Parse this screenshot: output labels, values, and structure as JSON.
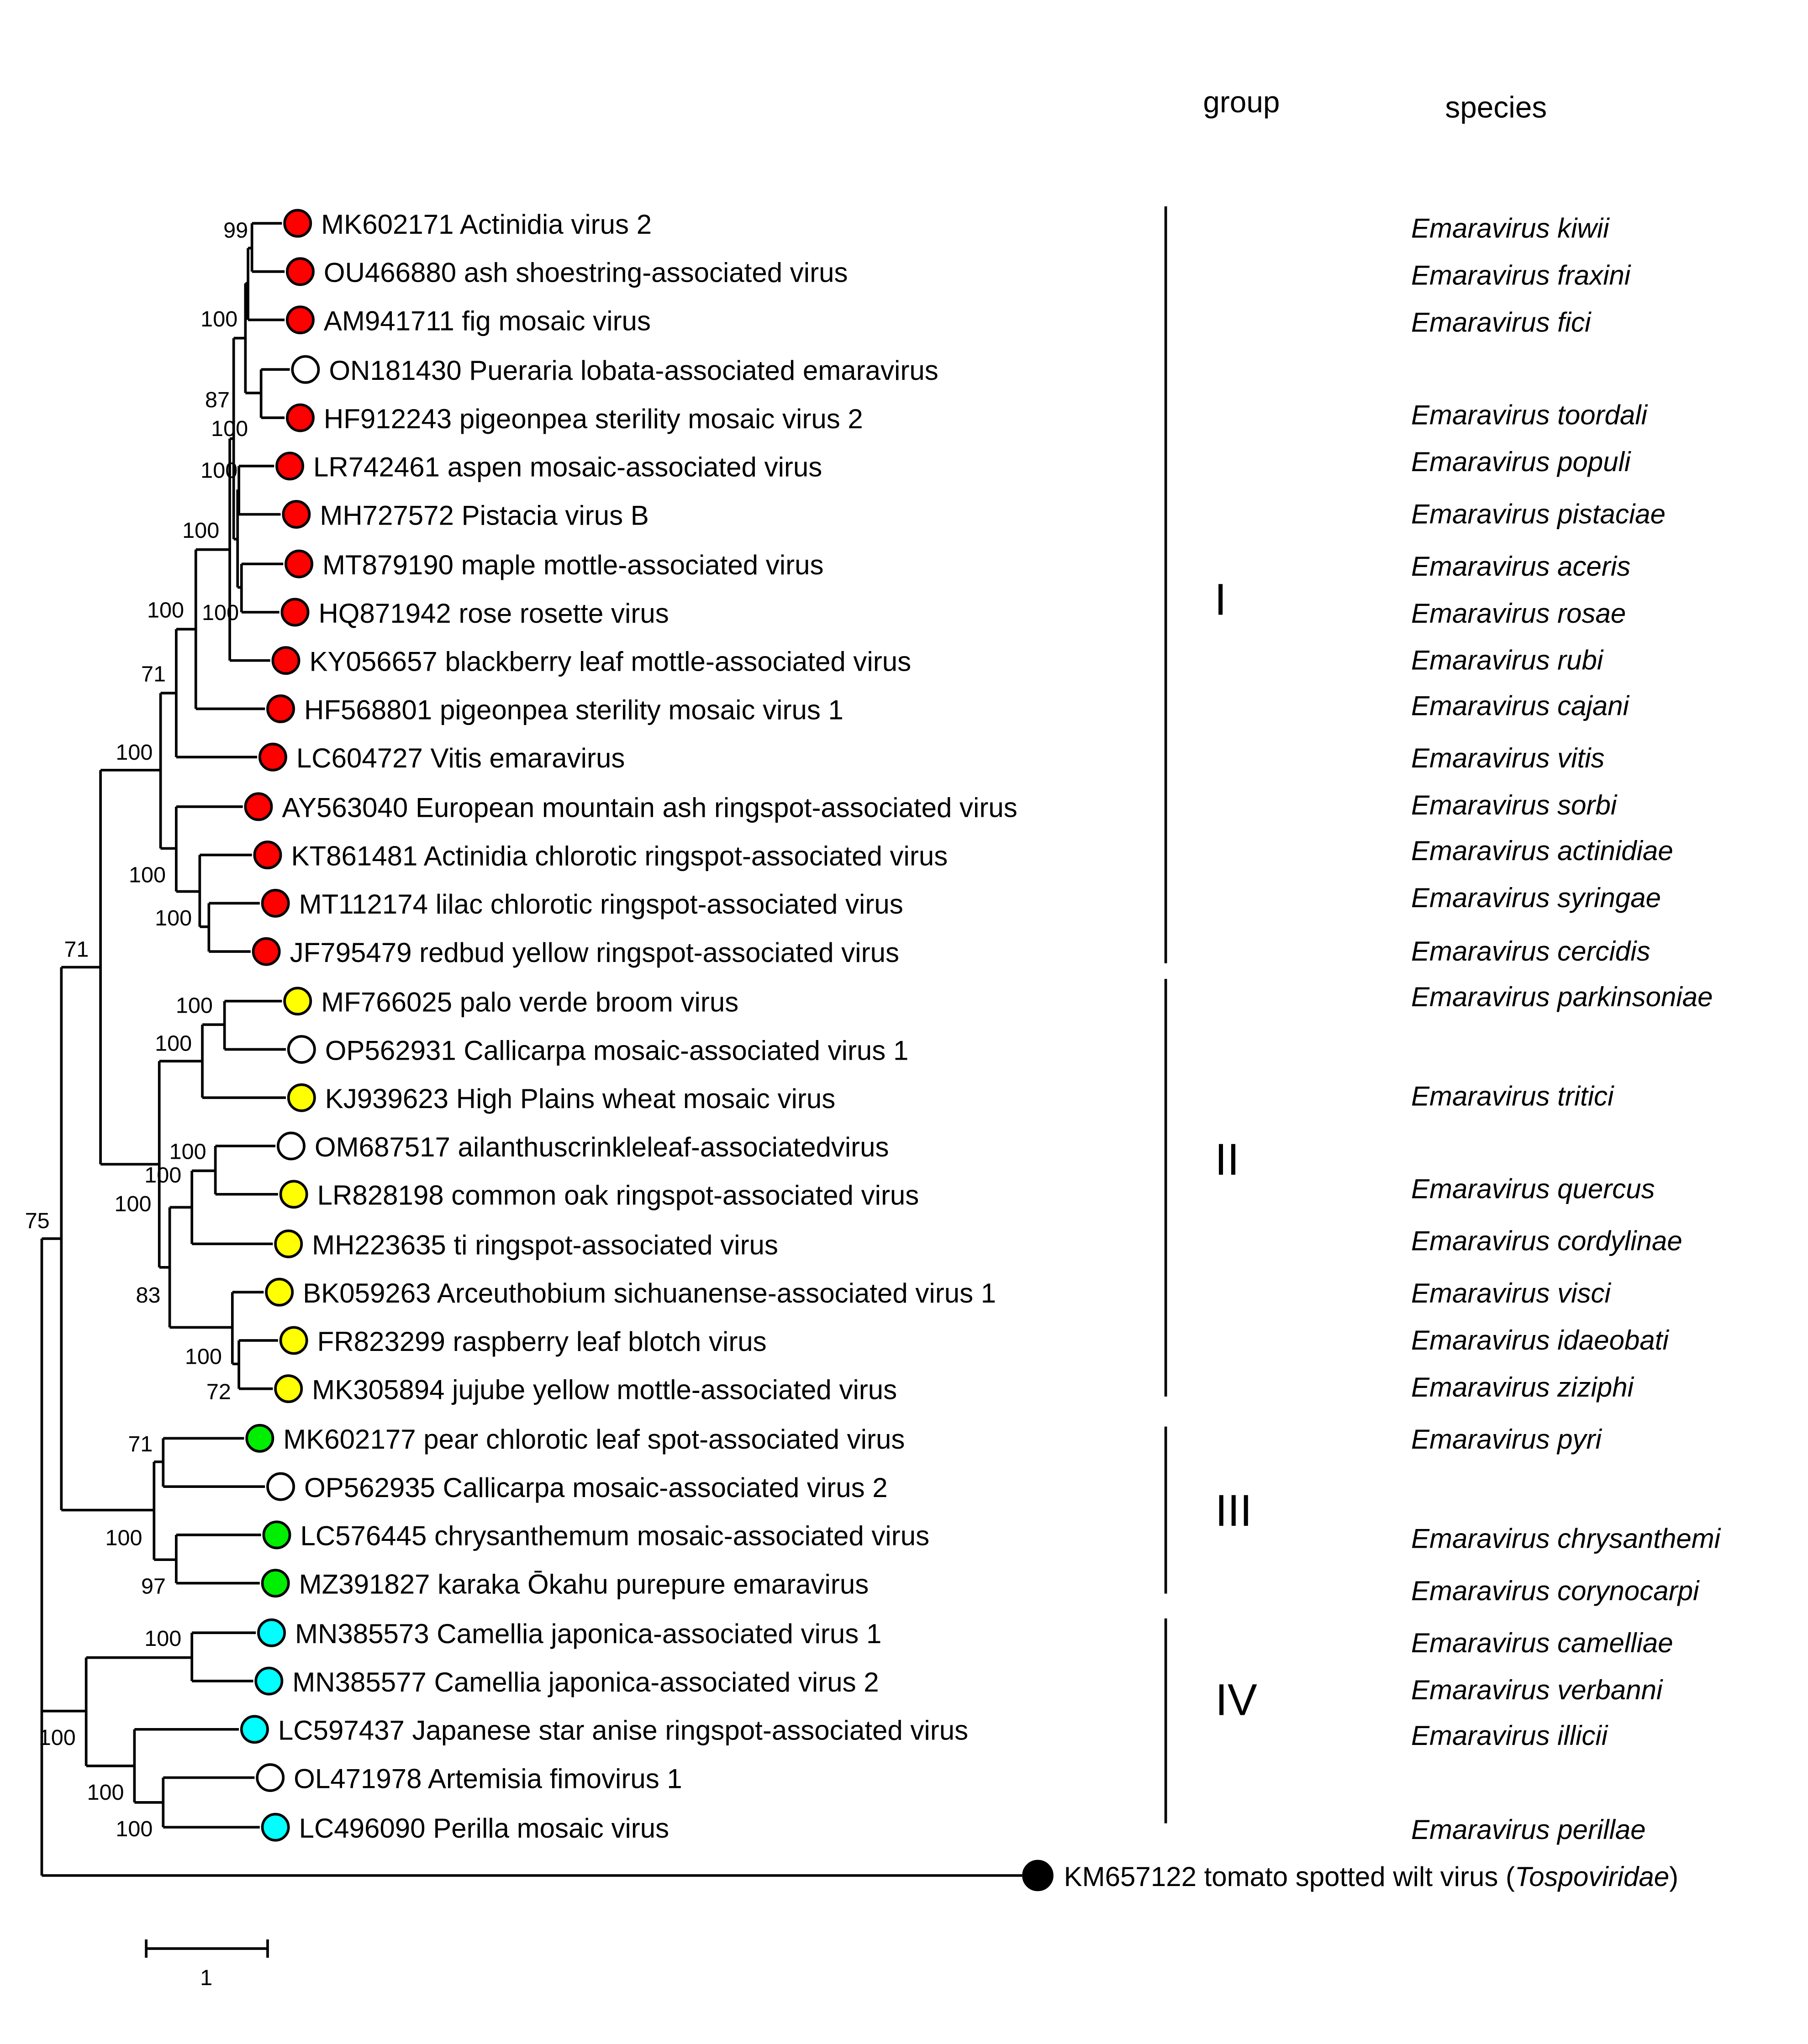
{
  "headers": {
    "group": "group",
    "species": "species"
  },
  "marker_colors": {
    "red": "#ff0000",
    "yellow": "#ffff00",
    "green": "#00ee00",
    "cyan": "#00ffff",
    "white": "#ffffff",
    "black": "#000000"
  },
  "leaves": [
    {
      "label": "MK602171 Actinidia virus 2",
      "marker": "red",
      "species": "Emaravirus kiwii"
    },
    {
      "label": "OU466880 ash shoestring-associated virus",
      "marker": "red",
      "species": "Emaravirus fraxini"
    },
    {
      "label": "AM941711 fig mosaic virus",
      "marker": "red",
      "species": "Emaravirus fici"
    },
    {
      "label": "ON181430 Pueraria lobata-associated emaravirus",
      "marker": "white",
      "species": null
    },
    {
      "label": "HF912243 pigeonpea sterility mosaic virus 2",
      "marker": "red",
      "species": "Emaravirus toordali"
    },
    {
      "label": "LR742461 aspen mosaic-associated virus",
      "marker": "red",
      "species": "Emaravirus populi"
    },
    {
      "label": "MH727572 Pistacia virus B",
      "marker": "red",
      "species": "Emaravirus pistaciae"
    },
    {
      "label": "MT879190 maple mottle-associated virus",
      "marker": "red",
      "species": "Emaravirus aceris"
    },
    {
      "label": "HQ871942 rose rosette virus",
      "marker": "red",
      "species": "Emaravirus rosae"
    },
    {
      "label": "KY056657 blackberry leaf mottle-associated virus",
      "marker": "red",
      "species": "Emaravirus rubi"
    },
    {
      "label": "HF568801 pigeonpea sterility mosaic virus 1",
      "marker": "red",
      "species": "Emaravirus cajani"
    },
    {
      "label": "LC604727 Vitis emaravirus",
      "marker": "red",
      "species": "Emaravirus vitis"
    },
    {
      "label": "AY563040 European mountain ash ringspot-associated virus",
      "marker": "red",
      "species": "Emaravirus sorbi"
    },
    {
      "label": "KT861481 Actinidia chlorotic ringspot-associated virus",
      "marker": "red",
      "species": "Emaravirus actinidiae"
    },
    {
      "label": "MT112174 lilac chlorotic ringspot-associated virus",
      "marker": "red",
      "species": "Emaravirus syringae"
    },
    {
      "label": "JF795479 redbud yellow ringspot-associated virus",
      "marker": "red",
      "species": "Emaravirus cercidis"
    },
    {
      "label": "MF766025 palo verde broom virus",
      "marker": "yellow",
      "species": "Emaravirus parkinsoniae"
    },
    {
      "label": "OP562931 Callicarpa mosaic-associated virus 1",
      "marker": "white",
      "species": null
    },
    {
      "label": "KJ939623 High Plains wheat mosaic virus",
      "marker": "yellow",
      "species": "Emaravirus tritici"
    },
    {
      "label": "OM687517 ailanthuscrinkleleaf-associatedvirus",
      "marker": "white",
      "species": null
    },
    {
      "label": "LR828198 common oak ringspot-associated virus",
      "marker": "yellow",
      "species": "Emaravirus quercus"
    },
    {
      "label": "MH223635 ti ringspot-associated virus",
      "marker": "yellow",
      "species": "Emaravirus cordylinae"
    },
    {
      "label": "BK059263 Arceuthobium sichuanense-associated virus 1",
      "marker": "yellow",
      "species": "Emaravirus visci"
    },
    {
      "label": "FR823299 raspberry leaf blotch virus",
      "marker": "yellow",
      "species": "Emaravirus idaeobati"
    },
    {
      "label": "MK305894 jujube yellow mottle-associated virus",
      "marker": "yellow",
      "species": "Emaravirus ziziphi"
    },
    {
      "label": "MK602177 pear chlorotic leaf spot-associated virus",
      "marker": "green",
      "species": "Emaravirus pyri"
    },
    {
      "label": "OP562935 Callicarpa mosaic-associated virus 2",
      "marker": "white",
      "species": null
    },
    {
      "label": "LC576445 chrysanthemum mosaic-associated virus",
      "marker": "green",
      "species": "Emaravirus chrysanthemi"
    },
    {
      "label": "MZ391827 karaka Ōkahu purepure emaravirus",
      "marker": "green",
      "species": "Emaravirus corynocarpi"
    },
    {
      "label": "MN385573 Camellia japonica-associated virus 1",
      "marker": "cyan",
      "species": "Emaravirus camelliae"
    },
    {
      "label": "MN385577 Camellia japonica-associated virus 2",
      "marker": "cyan",
      "species": "Emaravirus verbanni"
    },
    {
      "label": "LC597437 Japanese star anise ringspot-associated virus",
      "marker": "cyan",
      "species": "Emaravirus illicii"
    },
    {
      "label": "OL471978 Artemisia fimovirus 1",
      "marker": "white",
      "species": null
    },
    {
      "label": "LC496090 Perilla mosaic virus",
      "marker": "cyan",
      "species": "Emaravirus perillae"
    }
  ],
  "outgroup": {
    "label": "KM657122 tomato spotted wilt virus (",
    "family": "Tospoviridae",
    "close": ")",
    "marker": "black"
  },
  "bootstrap": [
    "99",
    "100",
    "87",
    "100",
    "100",
    "100",
    "100",
    "100",
    "71",
    "100",
    "100",
    "100",
    "71",
    "100",
    "100",
    "100",
    "100",
    "100",
    "83",
    "100",
    "72",
    "75",
    "71",
    "100",
    "97",
    "100",
    "100",
    "100",
    "100"
  ],
  "groups": [
    "I",
    "II",
    "III",
    "IV"
  ],
  "scale_bar": {
    "label": "1",
    "length": 1
  }
}
